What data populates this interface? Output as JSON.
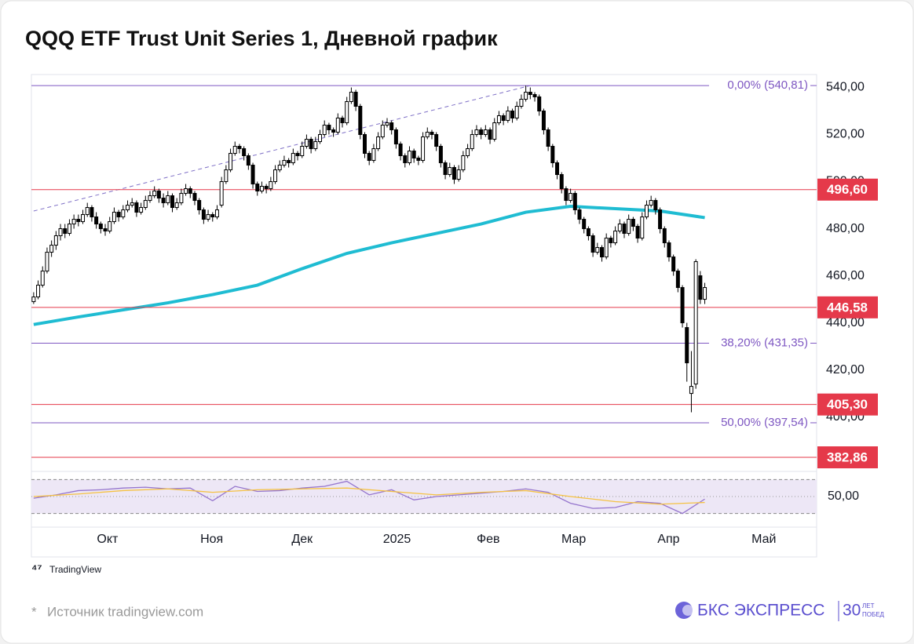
{
  "chart_data": [
    {
      "type": "candlestick",
      "title": "QQQ ETF Trust Unit Series 1, Дневной  график",
      "up_color": "#ffffff",
      "down_color": "#000000",
      "ohlc": [
        [
          449,
          453,
          448,
          451
        ],
        [
          451,
          458,
          450,
          456
        ],
        [
          456,
          464,
          455,
          462
        ],
        [
          462,
          472,
          461,
          470
        ],
        [
          470,
          475,
          468,
          473
        ],
        [
          473,
          479,
          471,
          477
        ],
        [
          477,
          482,
          475,
          480
        ],
        [
          480,
          482,
          476,
          478
        ],
        [
          478,
          484,
          477,
          482
        ],
        [
          482,
          486,
          480,
          484
        ],
        [
          484,
          486,
          481,
          483
        ],
        [
          483,
          488,
          482,
          486
        ],
        [
          486,
          491,
          485,
          489
        ],
        [
          489,
          490,
          483,
          485
        ],
        [
          485,
          487,
          480,
          482
        ],
        [
          482,
          483,
          478,
          480
        ],
        [
          480,
          482,
          477,
          479
        ],
        [
          479,
          485,
          478,
          483
        ],
        [
          483,
          489,
          482,
          487
        ],
        [
          487,
          488,
          483,
          485
        ],
        [
          485,
          490,
          484,
          488
        ],
        [
          488,
          492,
          487,
          490
        ],
        [
          490,
          493,
          489,
          491
        ],
        [
          491,
          492,
          485,
          487
        ],
        [
          487,
          491,
          486,
          489
        ],
        [
          489,
          494,
          488,
          492
        ],
        [
          492,
          496,
          491,
          494
        ],
        [
          494,
          498,
          493,
          496
        ],
        [
          496,
          497,
          491,
          493
        ],
        [
          493,
          495,
          489,
          491
        ],
        [
          491,
          496,
          490,
          494
        ],
        [
          494,
          495,
          487,
          489
        ],
        [
          489,
          493,
          488,
          491
        ],
        [
          491,
          497,
          490,
          495
        ],
        [
          495,
          499,
          494,
          497
        ],
        [
          497,
          498,
          493,
          495
        ],
        [
          495,
          496,
          490,
          492
        ],
        [
          492,
          493,
          486,
          488
        ],
        [
          488,
          489,
          482,
          484
        ],
        [
          484,
          488,
          483,
          486
        ],
        [
          486,
          487,
          483,
          485
        ],
        [
          485,
          490,
          484,
          488
        ],
        [
          490,
          502,
          489,
          500
        ],
        [
          500,
          507,
          499,
          505
        ],
        [
          505,
          514,
          504,
          512
        ],
        [
          512,
          517,
          511,
          515
        ],
        [
          515,
          516,
          512,
          514
        ],
        [
          514,
          515,
          509,
          511
        ],
        [
          511,
          512,
          505,
          507
        ],
        [
          507,
          508,
          497,
          499
        ],
        [
          499,
          500,
          494,
          496
        ],
        [
          496,
          500,
          495,
          498
        ],
        [
          498,
          499,
          495,
          497
        ],
        [
          497,
          502,
          496,
          500
        ],
        [
          500,
          507,
          499,
          505
        ],
        [
          505,
          509,
          504,
          507
        ],
        [
          507,
          511,
          506,
          509
        ],
        [
          509,
          510,
          506,
          508
        ],
        [
          508,
          514,
          507,
          512
        ],
        [
          512,
          513,
          509,
          511
        ],
        [
          511,
          517,
          510,
          515
        ],
        [
          515,
          520,
          514,
          518
        ],
        [
          518,
          519,
          512,
          514
        ],
        [
          514,
          519,
          513,
          517
        ],
        [
          517,
          522,
          516,
          520
        ],
        [
          520,
          526,
          519,
          524
        ],
        [
          524,
          525,
          520,
          522
        ],
        [
          522,
          523,
          519,
          521
        ],
        [
          521,
          529,
          520,
          527
        ],
        [
          527,
          528,
          523,
          525
        ],
        [
          525,
          536,
          524,
          534
        ],
        [
          534,
          540,
          533,
          538
        ],
        [
          538,
          539,
          530,
          532
        ],
        [
          532,
          533,
          518,
          520
        ],
        [
          520,
          521,
          510,
          512
        ],
        [
          512,
          513,
          507,
          509
        ],
        [
          509,
          516,
          508,
          514
        ],
        [
          514,
          521,
          513,
          519
        ],
        [
          519,
          526,
          518,
          524
        ],
        [
          524,
          527,
          523,
          525
        ],
        [
          525,
          526,
          520,
          522
        ],
        [
          522,
          523,
          514,
          516
        ],
        [
          516,
          517,
          509,
          511
        ],
        [
          511,
          512,
          506,
          508
        ],
        [
          508,
          515,
          507,
          513
        ],
        [
          513,
          514,
          508,
          510
        ],
        [
          510,
          511,
          507,
          509
        ],
        [
          509,
          521,
          508,
          519
        ],
        [
          519,
          523,
          518,
          521
        ],
        [
          521,
          522,
          518,
          520
        ],
        [
          520,
          521,
          513,
          515
        ],
        [
          515,
          516,
          506,
          508
        ],
        [
          508,
          509,
          501,
          503
        ],
        [
          503,
          508,
          502,
          506
        ],
        [
          506,
          507,
          499,
          501
        ],
        [
          501,
          507,
          500,
          505
        ],
        [
          505,
          513,
          504,
          511
        ],
        [
          511,
          516,
          510,
          514
        ],
        [
          514,
          522,
          513,
          520
        ],
        [
          520,
          524,
          519,
          522
        ],
        [
          522,
          523,
          518,
          520
        ],
        [
          520,
          524,
          519,
          522
        ],
        [
          522,
          523,
          516,
          518
        ],
        [
          518,
          527,
          517,
          525
        ],
        [
          525,
          530,
          524,
          528
        ],
        [
          528,
          529,
          524,
          526
        ],
        [
          526,
          532,
          525,
          530
        ],
        [
          530,
          531,
          525,
          527
        ],
        [
          527,
          534,
          526,
          532
        ],
        [
          532,
          537,
          531,
          535
        ],
        [
          535,
          540.81,
          534,
          538
        ],
        [
          538,
          540,
          535,
          537
        ],
        [
          537,
          538,
          534,
          536
        ],
        [
          536,
          537,
          528,
          530
        ],
        [
          530,
          531,
          520,
          522
        ],
        [
          522,
          523,
          513,
          515
        ],
        [
          515,
          516,
          506,
          508
        ],
        [
          508,
          509,
          501,
          503
        ],
        [
          503,
          504,
          495,
          497
        ],
        [
          497,
          498,
          490,
          492
        ],
        [
          492,
          497,
          491,
          495
        ],
        [
          495,
          496,
          486,
          488
        ],
        [
          488,
          489,
          482,
          484
        ],
        [
          484,
          485,
          478,
          480
        ],
        [
          480,
          481,
          475,
          477
        ],
        [
          477,
          478,
          468,
          470
        ],
        [
          470,
          474,
          469,
          472
        ],
        [
          472,
          473,
          466,
          468
        ],
        [
          468,
          478,
          467,
          476
        ],
        [
          476,
          477,
          472,
          474
        ],
        [
          474,
          481,
          473,
          479
        ],
        [
          479,
          484,
          478,
          482
        ],
        [
          482,
          483,
          476,
          478
        ],
        [
          478,
          486,
          477,
          484
        ],
        [
          484,
          485,
          479,
          481
        ],
        [
          481,
          482,
          474,
          476
        ],
        [
          476,
          487,
          475,
          485
        ],
        [
          485,
          492,
          484,
          490
        ],
        [
          490,
          494,
          489,
          492
        ],
        [
          492,
          493,
          486,
          488
        ],
        [
          488,
          489,
          478,
          480
        ],
        [
          480,
          481,
          472,
          474
        ],
        [
          474,
          475,
          466,
          468
        ],
        [
          468,
          469,
          460,
          462
        ],
        [
          462,
          463,
          453,
          455
        ],
        [
          455,
          456,
          438,
          440
        ],
        [
          438,
          440,
          415,
          423
        ],
        [
          410,
          428,
          402,
          413
        ],
        [
          414,
          467,
          412,
          466
        ],
        [
          460,
          462,
          448,
          450
        ],
        [
          450,
          457,
          448,
          455
        ]
      ],
      "ma": {
        "color": "#1fbcd2",
        "x": [
          0,
          10,
          20,
          30,
          40,
          50,
          60,
          70,
          80,
          90,
          100,
          110,
          120,
          130,
          140,
          150
        ],
        "values": [
          439.3,
          442.5,
          445.5,
          448.5,
          452,
          456,
          463,
          469.5,
          474,
          478,
          482,
          487,
          489.5,
          488.5,
          487.5,
          484.7
        ]
      },
      "trendline": {
        "color": "#7e6fc6",
        "x": [
          0,
          111
        ],
        "values": [
          487.5,
          540.81
        ]
      },
      "fib_color": "#7e57c2",
      "fib_levels": [
        {
          "value": 540.81,
          "label": "0,00% (540,81)"
        },
        {
          "value": 431.35,
          "label": "38,20% (431,35)"
        },
        {
          "value": 397.54,
          "label": "50,00% (397,54)"
        }
      ],
      "level_color": "#e5394a",
      "levels": [
        {
          "value": 496.6,
          "label": "496,60"
        },
        {
          "value": 446.58,
          "label": "446,58"
        },
        {
          "value": 405.3,
          "label": "405,30"
        },
        {
          "value": 382.86,
          "label": "382,86"
        }
      ],
      "xlim": [
        -0.5,
        175
      ],
      "xticks": [
        {
          "value": 16.5,
          "label": "Окт"
        },
        {
          "value": 39.8,
          "label": "Ноя"
        },
        {
          "value": 60,
          "label": "Дек"
        },
        {
          "value": 81.2,
          "label": "2025"
        },
        {
          "value": 101.6,
          "label": "Фев"
        },
        {
          "value": 120.7,
          "label": "Мар"
        },
        {
          "value": 141.9,
          "label": "Апр"
        },
        {
          "value": 163.2,
          "label": "Май"
        }
      ],
      "ylim": [
        377.2,
        545.5
      ],
      "yticks": [
        {
          "value": 400,
          "label": "400,00"
        },
        {
          "value": 420,
          "label": "420,00"
        },
        {
          "value": 440,
          "label": "440,00"
        },
        {
          "value": 460,
          "label": "460,00"
        },
        {
          "value": 480,
          "label": "480,00"
        },
        {
          "value": 500,
          "label": "500,00"
        },
        {
          "value": 520,
          "label": "520,00"
        },
        {
          "value": 540,
          "label": "540,00"
        }
      ]
    },
    {
      "type": "line",
      "xlim": [
        -0.5,
        175
      ],
      "ylim": [
        25,
        75
      ],
      "band": [
        30,
        70
      ],
      "band_color": "#ede7f6",
      "midline": 50,
      "yticks": [
        {
          "value": 50,
          "label": "50,00"
        }
      ],
      "series": [
        {
          "color": "#9575cd",
          "x": [
            0,
            5,
            10,
            15,
            20,
            25,
            30,
            35,
            40,
            45,
            50,
            55,
            60,
            65,
            70,
            75,
            80,
            85,
            90,
            95,
            100,
            105,
            110,
            115,
            120,
            125,
            130,
            135,
            140,
            145,
            150
          ],
          "values": [
            48,
            52,
            57,
            58,
            60,
            61,
            59,
            60,
            45,
            62,
            56,
            57,
            60,
            62,
            68,
            52,
            58,
            46,
            50,
            52,
            54,
            56,
            59,
            55,
            42,
            36,
            37,
            44,
            42,
            30,
            47
          ]
        },
        {
          "color": "#f5c242",
          "x": [
            0,
            10,
            20,
            30,
            40,
            50,
            60,
            70,
            80,
            90,
            100,
            110,
            120,
            130,
            140,
            150
          ],
          "values": [
            50,
            53,
            57,
            59,
            55,
            58,
            59,
            60,
            56,
            52,
            55,
            57,
            50,
            44,
            41,
            43
          ]
        }
      ]
    }
  ],
  "footer": {
    "logo": "TradingView",
    "mark": "*",
    "source": "Источник tradingview.com",
    "brand": "БКС ЭКСПРЕСС",
    "badge": "30",
    "badge_lines": [
      "ЛЕТ",
      "ПОБЕД"
    ]
  }
}
